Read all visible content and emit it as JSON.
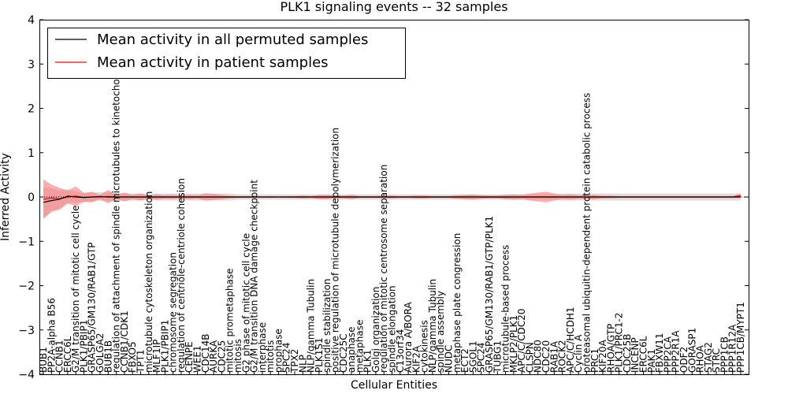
{
  "chart_data": {
    "type": "line",
    "title": "PLK1 signaling events -- 32 samples",
    "xlabel": "Cellular Entities",
    "ylabel": "Inferred Activity",
    "ylim": [
      -4,
      4
    ],
    "yticks": [
      -4,
      -3,
      -2,
      -1,
      0,
      1,
      2,
      3,
      4
    ],
    "ytick_labels": [
      "−4",
      "−3",
      "−2",
      "−1",
      "0",
      "1",
      "2",
      "3",
      "4"
    ],
    "grid": false,
    "legend_position": "top-left",
    "colors": {
      "permuted": "#000000",
      "patient": "#ff0000",
      "permuted_band": "#c8c8c8",
      "patient_band": "#ff6a6a"
    },
    "series": [
      {
        "name": "Mean activity in all permuted samples"
      },
      {
        "name": "Mean activity in patient samples"
      }
    ],
    "categories": [
      "BUB1",
      "PP2A-alpha B56",
      "CCNB1",
      "ERCC6L",
      "G2/M transition of mitotic cell cycle",
      "PLK1/PBIP1",
      "GRASP65/GM130/RAB1/GTP",
      "GOLGA2",
      "BUB1B",
      "regulation of attachment of spindle microtubules to kinetochore",
      "CCNB1/CDK1",
      "FBXO5",
      "TPT1",
      "microtubule cytoskeleton organization",
      "MLF1IP",
      "PLK1/PBIP1",
      "chromosome segregation",
      "regulation of centriole-centriole cohesion",
      "CENPE",
      "WEE1",
      "CDC14B",
      "AURKA",
      "CDC25",
      "mitotic prometaphase",
      "mitosis",
      "G2 phase of mitotic cell cycle",
      "G2/M transition DNA damage checkpoint",
      "interphase",
      "mitotis",
      "prophase",
      "SPC24",
      "TPX2",
      "NLP",
      "NLP/gamma Tubulin",
      "PLK1S1",
      "spindle stabilization",
      "positive regulation of microtubule depolymerization",
      "CDC25C",
      "anaphase",
      "metaphase",
      "PLK1",
      "Golgi organization",
      "regulation of mitotic centrosome separation",
      "spindle elongation",
      "C13orf34",
      "Aurora A/BORA",
      "KIF2A",
      "cytokinesis",
      "NLP/gamma Tubulin",
      "spindle assembly",
      "NUDC",
      "metaphase plate congression",
      "ECT2",
      "SGOL1",
      "SPC24",
      "GRASP65/GM130/RAB1/GTP/PLK1",
      "TUBG1",
      "microtubule-based process",
      "MKLP2/PLK1",
      "APC/C/CDC20",
      "CLSPN",
      "NDC80",
      "CDC20",
      "RAB1A",
      "ROCK2",
      "APC/C/HCDH1",
      "Cyclin A",
      "proteasomal ubiquitin-dependent protein catabolic process",
      "PRC1",
      "KIF20A",
      "RHOA/GTP",
      "PLK1/PRC1-2",
      "CDC25B",
      "INCENP",
      "ERCC6L",
      "PAK1",
      "FBXW11",
      "PPP2CA",
      "PPP2R1A",
      "ODF2",
      "GORASP1",
      "RHOA",
      "STAG2",
      "STRC",
      "PPP1CB",
      "PPP1R12A",
      "PPP1CB/MYPT1"
    ],
    "permuted_mean": [
      -0.12,
      -0.08,
      -0.05,
      0.02,
      0.0,
      -0.01,
      0.0,
      0.01,
      0.0,
      0.0,
      0.0,
      0.0,
      0.0,
      0.0,
      0.0,
      0.0,
      0.0,
      0.0,
      0.0,
      0.0,
      0.0,
      0.0,
      0.0,
      0.0,
      0.0,
      0.0,
      0.0,
      0.0,
      0.0,
      0.0,
      0.0,
      0.0,
      0.0,
      0.0,
      0.0,
      0.0,
      0.0,
      0.0,
      0.0,
      0.0,
      0.0,
      0.0,
      0.0,
      0.0,
      0.0,
      0.0,
      0.0,
      0.0,
      0.0,
      0.0,
      0.0,
      0.0,
      0.0,
      0.0,
      0.0,
      0.0,
      0.0,
      0.0,
      0.0,
      0.0,
      0.0,
      0.0,
      0.0,
      0.0,
      0.0,
      0.0,
      0.0,
      0.0,
      0.0,
      0.0,
      0.0,
      0.0,
      0.0,
      0.0,
      0.0,
      0.0,
      0.0,
      0.0,
      0.0,
      0.0,
      0.0,
      0.0,
      0.0,
      0.0,
      0.0,
      0.0,
      0.0
    ],
    "permuted_band": [
      0.35,
      0.28,
      0.2,
      0.15,
      0.12,
      0.1,
      0.1,
      0.1,
      0.1,
      0.09,
      0.08,
      0.08,
      0.08,
      0.08,
      0.08,
      0.08,
      0.08,
      0.08,
      0.08,
      0.08,
      0.08,
      0.08,
      0.08,
      0.08,
      0.06,
      0.06,
      0.06,
      0.06,
      0.06,
      0.06,
      0.06,
      0.06,
      0.06,
      0.06,
      0.06,
      0.06,
      0.06,
      0.06,
      0.06,
      0.06,
      0.06,
      0.06,
      0.06,
      0.06,
      0.06,
      0.06,
      0.06,
      0.06,
      0.06,
      0.06,
      0.06,
      0.06,
      0.06,
      0.06,
      0.06,
      0.06,
      0.06,
      0.06,
      0.06,
      0.06,
      0.06,
      0.06,
      0.06,
      0.06,
      0.08,
      0.08,
      0.08,
      0.08,
      0.08,
      0.08,
      0.08,
      0.08,
      0.08,
      0.08,
      0.08,
      0.08,
      0.08,
      0.08,
      0.08,
      0.08,
      0.08,
      0.08,
      0.08,
      0.08,
      0.08,
      0.08,
      0.08
    ],
    "patient_mean": [
      -0.05,
      -0.02,
      -0.04,
      0.0,
      0.02,
      -0.01,
      0.0,
      0.0,
      0.01,
      0.0,
      0.0,
      0.0,
      0.0,
      0.0,
      0.0,
      0.0,
      0.0,
      0.0,
      0.0,
      0.0,
      0.0,
      0.0,
      0.0,
      0.0,
      0.0,
      0.0,
      0.0,
      0.0,
      0.0,
      0.0,
      0.0,
      0.0,
      0.0,
      0.0,
      0.0,
      0.0,
      0.0,
      0.0,
      0.0,
      0.0,
      0.0,
      0.0,
      0.0,
      0.0,
      0.0,
      0.0,
      0.0,
      0.0,
      0.0,
      0.0,
      0.0,
      0.0,
      0.0,
      0.0,
      0.0,
      0.0,
      0.0,
      0.0,
      0.0,
      0.0,
      0.0,
      0.0,
      0.0,
      0.0,
      0.0,
      0.0,
      0.0,
      0.0,
      0.0,
      0.0,
      0.0,
      0.0,
      0.0,
      0.0,
      0.0,
      0.0,
      0.0,
      0.0,
      0.0,
      0.0,
      0.0,
      0.0,
      0.0,
      0.0,
      0.0,
      0.0,
      0.03
    ],
    "patient_band": [
      0.45,
      0.3,
      0.25,
      0.15,
      0.22,
      0.1,
      0.12,
      0.05,
      0.15,
      0.05,
      0.1,
      0.05,
      0.08,
      0.03,
      0.06,
      0.04,
      0.05,
      0.03,
      0.05,
      0.04,
      0.08,
      0.07,
      0.05,
      0.03,
      0.02,
      0.02,
      0.02,
      0.01,
      0.02,
      0.01,
      0.02,
      0.02,
      0.03,
      0.02,
      0.05,
      0.05,
      0.03,
      0.03,
      0.05,
      0.02,
      0.02,
      0.02,
      0.03,
      0.03,
      0.02,
      0.02,
      0.03,
      0.03,
      0.02,
      0.02,
      0.02,
      0.04,
      0.05,
      0.06,
      0.04,
      0.03,
      0.03,
      0.05,
      0.06,
      0.05,
      0.08,
      0.1,
      0.12,
      0.08,
      0.05,
      0.06,
      0.04,
      0.05,
      0.05,
      0.03,
      0.03,
      0.02,
      0.02,
      0.02,
      0.02,
      0.02,
      0.02,
      0.02,
      0.02,
      0.02,
      0.02,
      0.02,
      0.02,
      0.02,
      0.02,
      0.02,
      0.05
    ]
  }
}
